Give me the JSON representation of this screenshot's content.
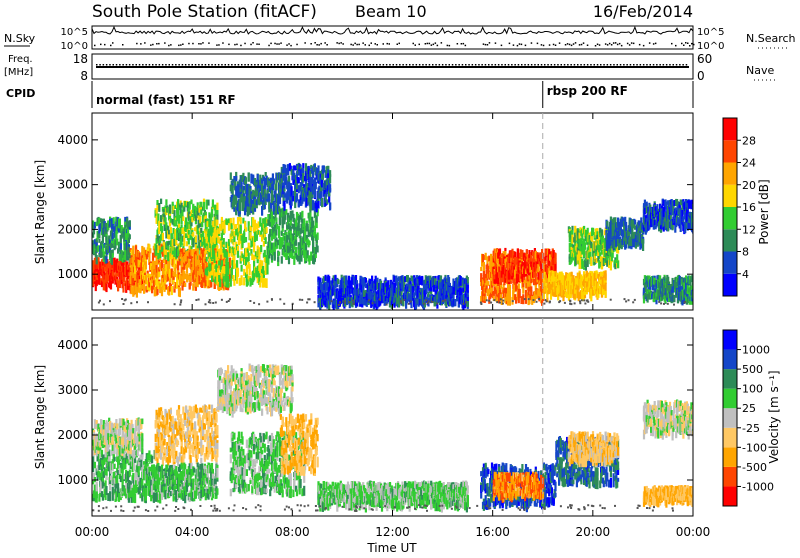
{
  "header": {
    "station": "South Pole Station (fitACF)",
    "beam": "Beam 10",
    "date": "16/Feb/2014"
  },
  "sky_panel": {
    "left_label": "N.Sky",
    "right_label": "N.Search",
    "left_ticks": [
      "10^5",
      "10^0"
    ],
    "right_ticks": [
      "10^5",
      "10^0"
    ]
  },
  "freq_panel": {
    "left_label_line1": "Freq.",
    "left_label_line2": "[MHz]",
    "right_label": "Nave",
    "left_ticks": [
      "18",
      "8"
    ],
    "right_ticks": [
      "60",
      "0"
    ]
  },
  "cpid": {
    "label": "CPID",
    "segments": [
      {
        "text": "normal (fast) 151 RF",
        "start_hour": 0
      },
      {
        "text": "rbsp 200 RF",
        "start_hour": 18.0
      }
    ]
  },
  "colors": {
    "power": [
      "#0000ff",
      "#1446c8",
      "#2d8b57",
      "#32cd32",
      "#ffd700",
      "#ffa500",
      "#ff4500",
      "#ff0000"
    ],
    "velocity": [
      "#ff0000",
      "#ff4500",
      "#ffa500",
      "#ffc864",
      "#c0c0c0",
      "#32cd32",
      "#2d8b57",
      "#1446c8",
      "#0000ff"
    ]
  },
  "chart_data": [
    {
      "type": "heatmap",
      "title": "Power",
      "ylabel": "Slant Range [km]",
      "yticks": [
        "1000",
        "2000",
        "3000",
        "4000"
      ],
      "ylim": [
        200,
        4600
      ],
      "xlim": [
        0,
        24
      ],
      "colorbar": {
        "label": "Power [dB]",
        "ticks": [
          "4",
          "8",
          "12",
          "16",
          "20",
          "24",
          "28"
        ],
        "range": [
          0,
          32
        ]
      },
      "regions": [
        {
          "t0": 0.0,
          "t1": 2.0,
          "r0": 700,
          "r1": 1300,
          "value": 28
        },
        {
          "t0": 0.0,
          "t1": 1.5,
          "r0": 1300,
          "r1": 2200,
          "value": 10
        },
        {
          "t0": 1.5,
          "t1": 3.5,
          "r0": 600,
          "r1": 1600,
          "value": 22
        },
        {
          "t0": 2.5,
          "t1": 5.0,
          "r0": 1400,
          "r1": 2600,
          "value": 14
        },
        {
          "t0": 3.5,
          "t1": 5.5,
          "r0": 700,
          "r1": 1500,
          "value": 24
        },
        {
          "t0": 4.5,
          "t1": 7.0,
          "r0": 800,
          "r1": 2200,
          "value": 16
        },
        {
          "t0": 5.5,
          "t1": 7.5,
          "r0": 2400,
          "r1": 3200,
          "value": 8
        },
        {
          "t0": 7.0,
          "t1": 9.0,
          "r0": 1300,
          "r1": 2400,
          "value": 12
        },
        {
          "t0": 7.5,
          "t1": 9.5,
          "r0": 2500,
          "r1": 3400,
          "value": 6
        },
        {
          "t0": 9.0,
          "t1": 12.0,
          "r0": 300,
          "r1": 900,
          "value": 5
        },
        {
          "t0": 12.0,
          "t1": 15.0,
          "r0": 300,
          "r1": 900,
          "value": 6
        },
        {
          "t0": 15.5,
          "t1": 18.0,
          "r0": 400,
          "r1": 1400,
          "value": 24
        },
        {
          "t0": 16.0,
          "t1": 18.5,
          "r0": 900,
          "r1": 1500,
          "value": 27
        },
        {
          "t0": 18.0,
          "t1": 20.5,
          "r0": 500,
          "r1": 1000,
          "value": 20
        },
        {
          "t0": 19.0,
          "t1": 21.0,
          "r0": 1200,
          "r1": 2000,
          "value": 14
        },
        {
          "t0": 20.5,
          "t1": 22.0,
          "r0": 1600,
          "r1": 2200,
          "value": 8
        },
        {
          "t0": 22.0,
          "t1": 24.0,
          "r0": 2000,
          "r1": 2600,
          "value": 6
        },
        {
          "t0": 22.0,
          "t1": 24.0,
          "r0": 400,
          "r1": 900,
          "value": 10
        }
      ]
    },
    {
      "type": "heatmap",
      "title": "Velocity",
      "ylabel": "Slant Range [km]",
      "xlabel": "Time UT",
      "xticks": [
        "00:00",
        "04:00",
        "08:00",
        "12:00",
        "16:00",
        "20:00",
        "00:00"
      ],
      "yticks": [
        "1000",
        "2000",
        "3000",
        "4000"
      ],
      "ylim": [
        200,
        4600
      ],
      "xlim": [
        0,
        24
      ],
      "colorbar": {
        "label": "Velocity [m s⁻¹]",
        "ticks": [
          "-1000",
          "-500",
          "-100",
          "-25",
          "25",
          "100",
          "500",
          "1000"
        ],
        "range": [
          -1200,
          1200
        ]
      },
      "regions": [
        {
          "t0": 0.0,
          "t1": 2.5,
          "r0": 600,
          "r1": 1600,
          "value": 300
        },
        {
          "t0": 0.0,
          "t1": 2.0,
          "r0": 1600,
          "r1": 2300,
          "value": 0
        },
        {
          "t0": 2.5,
          "t1": 5.0,
          "r0": 1400,
          "r1": 2600,
          "value": -300
        },
        {
          "t0": 2.5,
          "t1": 5.0,
          "r0": 600,
          "r1": 1300,
          "value": 300
        },
        {
          "t0": 5.0,
          "t1": 8.0,
          "r0": 2500,
          "r1": 3500,
          "value": 0
        },
        {
          "t0": 5.5,
          "t1": 8.5,
          "r0": 700,
          "r1": 2000,
          "value": 250
        },
        {
          "t0": 7.5,
          "t1": 9.0,
          "r0": 1200,
          "r1": 2400,
          "value": -400
        },
        {
          "t0": 9.0,
          "t1": 15.0,
          "r0": 400,
          "r1": 900,
          "value": 200
        },
        {
          "t0": 15.5,
          "t1": 18.5,
          "r0": 400,
          "r1": 1300,
          "value": 800
        },
        {
          "t0": 16.0,
          "t1": 18.0,
          "r0": 600,
          "r1": 1100,
          "value": -600
        },
        {
          "t0": 18.5,
          "t1": 21.0,
          "r0": 900,
          "r1": 1900,
          "value": 700
        },
        {
          "t0": 19.0,
          "t1": 21.0,
          "r0": 1400,
          "r1": 2000,
          "value": -300
        },
        {
          "t0": 22.0,
          "t1": 24.0,
          "r0": 2000,
          "r1": 2700,
          "value": 0
        },
        {
          "t0": 22.0,
          "t1": 24.0,
          "r0": 500,
          "r1": 800,
          "value": -400
        }
      ]
    }
  ]
}
